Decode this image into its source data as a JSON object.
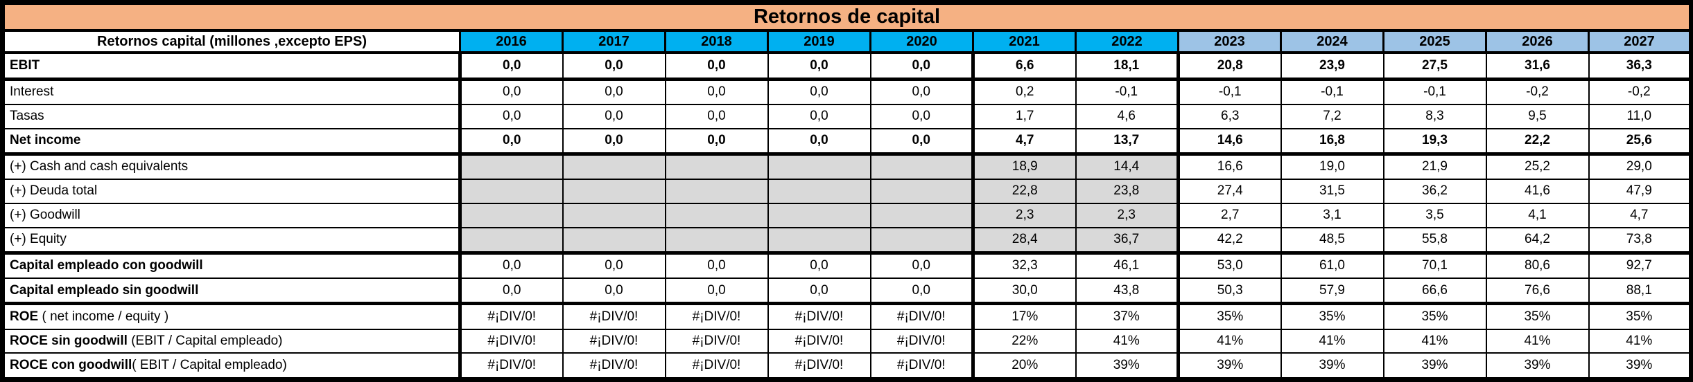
{
  "title": "Retornos de capital",
  "colors": {
    "title_bg": "#F5B183",
    "year_actual_bg": "#00B0F0",
    "year_forecast_bg": "#9DC3E6",
    "shaded_cell_bg": "#D9D9D9",
    "border": "#000000",
    "text": "#000000"
  },
  "table": {
    "label_header": "Retornos capital (millones ,excepto EPS)",
    "years": [
      {
        "label": "2016",
        "tone": "actual"
      },
      {
        "label": "2017",
        "tone": "actual"
      },
      {
        "label": "2018",
        "tone": "actual"
      },
      {
        "label": "2019",
        "tone": "actual"
      },
      {
        "label": "2020",
        "tone": "actual"
      },
      {
        "label": "2021",
        "tone": "actual"
      },
      {
        "label": "2022",
        "tone": "actual"
      },
      {
        "label": "2023",
        "tone": "forecast"
      },
      {
        "label": "2024",
        "tone": "forecast"
      },
      {
        "label": "2025",
        "tone": "forecast"
      },
      {
        "label": "2026",
        "tone": "forecast"
      },
      {
        "label": "2027",
        "tone": "forecast"
      }
    ],
    "thick_left_value_cols": [
      0,
      5,
      7
    ],
    "shaded_value_cols_end": 6,
    "rows": [
      {
        "key": "ebit",
        "label_bold": "EBIT",
        "label_rest": "",
        "values_bold": true,
        "shaded": false,
        "thick_bottom": true,
        "values": [
          "0,0",
          "0,0",
          "0,0",
          "0,0",
          "0,0",
          "6,6",
          "18,1",
          "20,8",
          "23,9",
          "27,5",
          "31,6",
          "36,3"
        ]
      },
      {
        "key": "interest",
        "label_bold": "",
        "label_rest": "Interest",
        "values_bold": false,
        "shaded": false,
        "thick_bottom": false,
        "values": [
          "0,0",
          "0,0",
          "0,0",
          "0,0",
          "0,0",
          "0,2",
          "-0,1",
          "-0,1",
          "-0,1",
          "-0,1",
          "-0,2",
          "-0,2"
        ]
      },
      {
        "key": "tasas",
        "label_bold": "",
        "label_rest": "Tasas",
        "values_bold": false,
        "shaded": false,
        "thick_bottom": false,
        "values": [
          "0,0",
          "0,0",
          "0,0",
          "0,0",
          "0,0",
          "1,7",
          "4,6",
          "6,3",
          "7,2",
          "8,3",
          "9,5",
          "11,0"
        ]
      },
      {
        "key": "net-income",
        "label_bold": "Net income",
        "label_rest": "",
        "values_bold": true,
        "shaded": false,
        "thick_bottom": true,
        "values": [
          "0,0",
          "0,0",
          "0,0",
          "0,0",
          "0,0",
          "4,7",
          "13,7",
          "14,6",
          "16,8",
          "19,3",
          "22,2",
          "25,6"
        ]
      },
      {
        "key": "cash",
        "label_bold": "",
        "label_rest": "(+) Cash and cash equivalents",
        "values_bold": false,
        "shaded": true,
        "thick_bottom": false,
        "values": [
          "",
          "",
          "",
          "",
          "",
          "18,9",
          "14,4",
          "16,6",
          "19,0",
          "21,9",
          "25,2",
          "29,0"
        ]
      },
      {
        "key": "deuda-total",
        "label_bold": "",
        "label_rest": "(+) Deuda total",
        "values_bold": false,
        "shaded": true,
        "thick_bottom": false,
        "values": [
          "",
          "",
          "",
          "",
          "",
          "22,8",
          "23,8",
          "27,4",
          "31,5",
          "36,2",
          "41,6",
          "47,9"
        ]
      },
      {
        "key": "goodwill",
        "label_bold": "",
        "label_rest": "(+) Goodwill",
        "values_bold": false,
        "shaded": true,
        "thick_bottom": false,
        "values": [
          "",
          "",
          "",
          "",
          "",
          "2,3",
          "2,3",
          "2,7",
          "3,1",
          "3,5",
          "4,1",
          "4,7"
        ]
      },
      {
        "key": "equity",
        "label_bold": "",
        "label_rest": "(+) Equity",
        "values_bold": false,
        "shaded": true,
        "thick_bottom": true,
        "values": [
          "",
          "",
          "",
          "",
          "",
          "28,4",
          "36,7",
          "42,2",
          "48,5",
          "55,8",
          "64,2",
          "73,8"
        ]
      },
      {
        "key": "capital-con-goodwill",
        "label_bold": "Capital empleado con goodwill",
        "label_rest": "",
        "values_bold": false,
        "shaded": false,
        "thick_bottom": false,
        "values": [
          "0,0",
          "0,0",
          "0,0",
          "0,0",
          "0,0",
          "32,3",
          "46,1",
          "53,0",
          "61,0",
          "70,1",
          "80,6",
          "92,7"
        ]
      },
      {
        "key": "capital-sin-goodwill",
        "label_bold": "Capital empleado sin goodwill",
        "label_rest": "",
        "values_bold": false,
        "shaded": false,
        "thick_bottom": true,
        "values": [
          "0,0",
          "0,0",
          "0,0",
          "0,0",
          "0,0",
          "30,0",
          "43,8",
          "50,3",
          "57,9",
          "66,6",
          "76,6",
          "88,1"
        ]
      },
      {
        "key": "roe",
        "label_bold": "ROE",
        "label_rest": " ( net income / equity )",
        "values_bold": false,
        "shaded": false,
        "thick_bottom": false,
        "values": [
          "#¡DIV/0!",
          "#¡DIV/0!",
          "#¡DIV/0!",
          "#¡DIV/0!",
          "#¡DIV/0!",
          "17%",
          "37%",
          "35%",
          "35%",
          "35%",
          "35%",
          "35%"
        ]
      },
      {
        "key": "roce-sin-goodwill",
        "label_bold": "ROCE sin goodwill",
        "label_rest": " (EBIT / Capital empleado)",
        "values_bold": false,
        "shaded": false,
        "thick_bottom": false,
        "values": [
          "#¡DIV/0!",
          "#¡DIV/0!",
          "#¡DIV/0!",
          "#¡DIV/0!",
          "#¡DIV/0!",
          "22%",
          "41%",
          "41%",
          "41%",
          "41%",
          "41%",
          "41%"
        ]
      },
      {
        "key": "roce-con-goodwill",
        "label_bold": "ROCE con goodwill",
        "label_rest": "( EBIT / Capital empleado)",
        "values_bold": false,
        "shaded": false,
        "thick_bottom": false,
        "values": [
          "#¡DIV/0!",
          "#¡DIV/0!",
          "#¡DIV/0!",
          "#¡DIV/0!",
          "#¡DIV/0!",
          "20%",
          "39%",
          "39%",
          "39%",
          "39%",
          "39%",
          "39%"
        ]
      }
    ]
  }
}
